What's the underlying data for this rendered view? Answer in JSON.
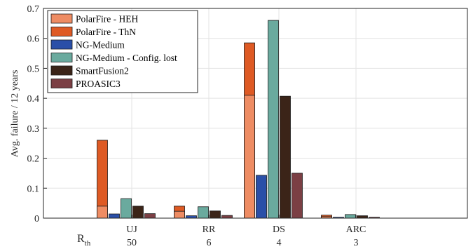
{
  "chart_data": {
    "type": "bar",
    "stacked_pairs": true,
    "title": "",
    "ylabel": "Avg. failure / 12 years",
    "xlabel": "",
    "ylim": [
      0,
      0.7
    ],
    "yticks": [
      "0",
      "0.1",
      "0.2",
      "0.3",
      "0.4",
      "0.5",
      "0.6",
      "0.7"
    ],
    "grid": true,
    "legend_position": "top-left",
    "categories": [
      "UJ",
      "RR",
      "DS",
      "ARC"
    ],
    "rth_label": "R",
    "rth_sub": "th",
    "rth_values": [
      "50",
      "6",
      "4",
      "3"
    ],
    "series": [
      {
        "name": "PolarFire - HEH",
        "color": "#ee8c63",
        "values": [
          0.04,
          0.023,
          0.41,
          0.005
        ]
      },
      {
        "name": "PolarFire - ThN",
        "color": "#de5a24",
        "values": [
          0.26,
          0.04,
          0.585,
          0.01
        ]
      },
      {
        "name": "NG-Medium",
        "color": "#2a4fa8",
        "values": [
          0.014,
          0.008,
          0.143,
          0.003
        ]
      },
      {
        "name": "NG-Medium - Config. lost",
        "color": "#6aaa9e",
        "values": [
          0.065,
          0.038,
          0.66,
          0.012
        ]
      },
      {
        "name": "SmartFusion2",
        "color": "#3b2418",
        "values": [
          0.04,
          0.024,
          0.407,
          0.008
        ]
      },
      {
        "name": "PROASIC3",
        "color": "#7b3f44",
        "values": [
          0.015,
          0.009,
          0.15,
          0.003
        ]
      }
    ]
  }
}
